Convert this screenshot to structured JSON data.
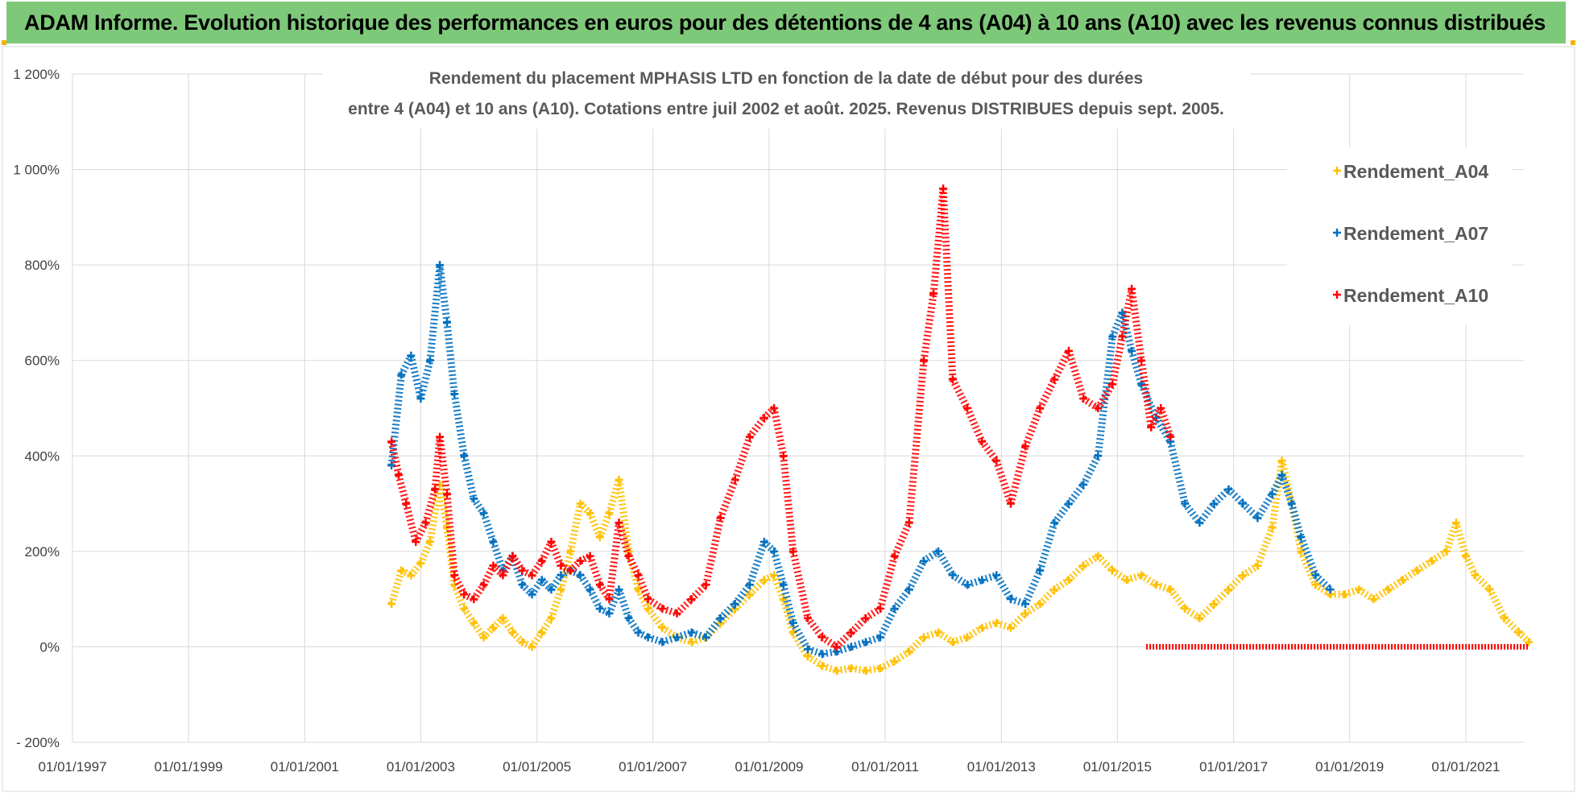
{
  "banner": {
    "title": "ADAM Informe. Evolution historique des performances en euros pour des détentions de 4 ans (A04) à 10 ans (A10) avec les revenus connus distribués",
    "color": "#7ec87a"
  },
  "chart_data": {
    "type": "scatter",
    "title_line1": "Rendement du placement MPHASIS LTD en fonction de la date de début pour des durées",
    "title_line2": "entre 4 (A04) et 10 ans (A10).  Cotations entre juil 2002 et août. 2025.  Revenus DISTRIBUES depuis sept. 2005.",
    "xlabel": "",
    "ylabel": "",
    "xlim": [
      "1997-01-01",
      "2022-01-01"
    ],
    "ylim": [
      -200,
      1200
    ],
    "x_ticks": [
      "01/01/1997",
      "01/01/1999",
      "01/01/2001",
      "01/01/2003",
      "01/01/2005",
      "01/01/2007",
      "01/01/2009",
      "01/01/2011",
      "01/01/2013",
      "01/01/2015",
      "01/01/2017",
      "01/01/2019",
      "01/01/2021"
    ],
    "y_ticks": [
      "- 200%",
      "0%",
      "200%",
      "400%",
      "600%",
      "800%",
      "1 000%",
      "1 200%"
    ],
    "y_tick_values": [
      -200,
      0,
      200,
      400,
      600,
      800,
      1000,
      1200
    ],
    "grid": true,
    "legend_position": "top-right",
    "marker": "+",
    "series": [
      {
        "name": "Rendement_A04",
        "color": "#ffc000",
        "points": [
          [
            "2002-07-01",
            90
          ],
          [
            "2002-09-01",
            160
          ],
          [
            "2002-11-01",
            150
          ],
          [
            "2003-01-01",
            175
          ],
          [
            "2003-03-01",
            220
          ],
          [
            "2003-05-01",
            340
          ],
          [
            "2003-06-15",
            250
          ],
          [
            "2003-08-01",
            130
          ],
          [
            "2003-10-01",
            80
          ],
          [
            "2003-12-01",
            50
          ],
          [
            "2004-02-01",
            20
          ],
          [
            "2004-04-01",
            40
          ],
          [
            "2004-06-01",
            60
          ],
          [
            "2004-08-01",
            30
          ],
          [
            "2004-10-01",
            10
          ],
          [
            "2004-12-01",
            0
          ],
          [
            "2005-02-01",
            30
          ],
          [
            "2005-04-01",
            60
          ],
          [
            "2005-06-01",
            120
          ],
          [
            "2005-08-01",
            200
          ],
          [
            "2005-10-01",
            300
          ],
          [
            "2005-12-01",
            280
          ],
          [
            "2006-02-01",
            230
          ],
          [
            "2006-04-01",
            280
          ],
          [
            "2006-06-01",
            350
          ],
          [
            "2006-08-01",
            200
          ],
          [
            "2006-10-01",
            120
          ],
          [
            "2006-12-01",
            80
          ],
          [
            "2007-03-01",
            40
          ],
          [
            "2007-06-01",
            20
          ],
          [
            "2007-09-01",
            10
          ],
          [
            "2007-12-01",
            20
          ],
          [
            "2008-03-01",
            50
          ],
          [
            "2008-06-01",
            80
          ],
          [
            "2008-09-01",
            110
          ],
          [
            "2008-12-01",
            140
          ],
          [
            "2009-02-01",
            150
          ],
          [
            "2009-04-01",
            100
          ],
          [
            "2009-06-01",
            30
          ],
          [
            "2009-09-01",
            -20
          ],
          [
            "2009-12-01",
            -40
          ],
          [
            "2010-03-01",
            -50
          ],
          [
            "2010-06-01",
            -45
          ],
          [
            "2010-09-01",
            -50
          ],
          [
            "2010-12-01",
            -45
          ],
          [
            "2011-03-01",
            -30
          ],
          [
            "2011-06-01",
            -10
          ],
          [
            "2011-09-01",
            20
          ],
          [
            "2011-12-01",
            30
          ],
          [
            "2012-03-01",
            10
          ],
          [
            "2012-06-01",
            20
          ],
          [
            "2012-09-01",
            40
          ],
          [
            "2012-12-01",
            50
          ],
          [
            "2013-03-01",
            40
          ],
          [
            "2013-06-01",
            70
          ],
          [
            "2013-09-01",
            90
          ],
          [
            "2013-12-01",
            120
          ],
          [
            "2014-03-01",
            140
          ],
          [
            "2014-06-01",
            170
          ],
          [
            "2014-09-01",
            190
          ],
          [
            "2014-12-01",
            160
          ],
          [
            "2015-03-01",
            140
          ],
          [
            "2015-06-01",
            150
          ],
          [
            "2015-09-01",
            130
          ],
          [
            "2015-12-01",
            120
          ],
          [
            "2016-03-01",
            80
          ],
          [
            "2016-06-01",
            60
          ],
          [
            "2016-09-01",
            90
          ],
          [
            "2016-12-01",
            120
          ],
          [
            "2017-03-01",
            150
          ],
          [
            "2017-06-01",
            170
          ],
          [
            "2017-09-01",
            250
          ],
          [
            "2017-11-01",
            390
          ],
          [
            "2018-01-01",
            300
          ],
          [
            "2018-03-01",
            200
          ],
          [
            "2018-06-01",
            130
          ],
          [
            "2018-09-01",
            110
          ],
          [
            "2018-12-01",
            110
          ],
          [
            "2019-03-01",
            120
          ],
          [
            "2019-06-01",
            100
          ],
          [
            "2019-09-01",
            120
          ],
          [
            "2019-12-01",
            140
          ],
          [
            "2020-03-01",
            160
          ],
          [
            "2020-06-01",
            180
          ],
          [
            "2020-09-01",
            200
          ],
          [
            "2020-11-01",
            260
          ],
          [
            "2021-01-01",
            190
          ],
          [
            "2021-03-01",
            150
          ],
          [
            "2021-06-01",
            120
          ],
          [
            "2021-09-01",
            60
          ],
          [
            "2021-12-01",
            30
          ],
          [
            "2022-02-01",
            10
          ]
        ]
      },
      {
        "name": "Rendement_A07",
        "color": "#0070c0",
        "points": [
          [
            "2002-07-01",
            380
          ],
          [
            "2002-09-01",
            570
          ],
          [
            "2002-11-01",
            610
          ],
          [
            "2003-01-01",
            520
          ],
          [
            "2003-03-01",
            600
          ],
          [
            "2003-05-01",
            800
          ],
          [
            "2003-06-15",
            680
          ],
          [
            "2003-08-01",
            530
          ],
          [
            "2003-10-01",
            400
          ],
          [
            "2003-12-01",
            310
          ],
          [
            "2004-02-01",
            280
          ],
          [
            "2004-04-01",
            220
          ],
          [
            "2004-06-01",
            160
          ],
          [
            "2004-08-01",
            190
          ],
          [
            "2004-10-01",
            130
          ],
          [
            "2004-12-01",
            110
          ],
          [
            "2005-02-01",
            140
          ],
          [
            "2005-04-01",
            120
          ],
          [
            "2005-06-01",
            150
          ],
          [
            "2005-08-01",
            160
          ],
          [
            "2005-10-01",
            150
          ],
          [
            "2005-12-01",
            120
          ],
          [
            "2006-02-01",
            80
          ],
          [
            "2006-04-01",
            70
          ],
          [
            "2006-06-01",
            120
          ],
          [
            "2006-08-01",
            60
          ],
          [
            "2006-10-01",
            30
          ],
          [
            "2006-12-01",
            20
          ],
          [
            "2007-03-01",
            10
          ],
          [
            "2007-06-01",
            20
          ],
          [
            "2007-09-01",
            30
          ],
          [
            "2007-12-01",
            20
          ],
          [
            "2008-03-01",
            60
          ],
          [
            "2008-06-01",
            90
          ],
          [
            "2008-09-01",
            130
          ],
          [
            "2008-12-01",
            220
          ],
          [
            "2009-02-01",
            200
          ],
          [
            "2009-04-01",
            130
          ],
          [
            "2009-06-01",
            50
          ],
          [
            "2009-09-01",
            -5
          ],
          [
            "2009-12-01",
            -15
          ],
          [
            "2010-03-01",
            -10
          ],
          [
            "2010-06-01",
            0
          ],
          [
            "2010-09-01",
            10
          ],
          [
            "2010-12-01",
            20
          ],
          [
            "2011-03-01",
            80
          ],
          [
            "2011-06-01",
            120
          ],
          [
            "2011-09-01",
            180
          ],
          [
            "2011-12-01",
            200
          ],
          [
            "2012-03-01",
            150
          ],
          [
            "2012-06-01",
            130
          ],
          [
            "2012-09-01",
            140
          ],
          [
            "2012-12-01",
            150
          ],
          [
            "2013-03-01",
            100
          ],
          [
            "2013-06-01",
            90
          ],
          [
            "2013-09-01",
            160
          ],
          [
            "2013-12-01",
            260
          ],
          [
            "2014-03-01",
            300
          ],
          [
            "2014-06-01",
            340
          ],
          [
            "2014-09-01",
            400
          ],
          [
            "2014-12-01",
            650
          ],
          [
            "2015-02-01",
            700
          ],
          [
            "2015-04-01",
            620
          ],
          [
            "2015-06-01",
            550
          ],
          [
            "2015-09-01",
            480
          ],
          [
            "2015-12-01",
            430
          ],
          [
            "2016-03-01",
            300
          ],
          [
            "2016-06-01",
            260
          ],
          [
            "2016-09-01",
            300
          ],
          [
            "2016-12-01",
            330
          ],
          [
            "2017-03-01",
            300
          ],
          [
            "2017-06-01",
            270
          ],
          [
            "2017-09-01",
            320
          ],
          [
            "2017-11-01",
            360
          ],
          [
            "2018-01-01",
            300
          ],
          [
            "2018-03-01",
            230
          ],
          [
            "2018-06-01",
            150
          ],
          [
            "2018-09-01",
            120
          ]
        ]
      },
      {
        "name": "Rendement_A10",
        "color": "#ff0000",
        "points": [
          [
            "2002-07-01",
            430
          ],
          [
            "2002-08-15",
            360
          ],
          [
            "2002-10-01",
            300
          ],
          [
            "2002-12-01",
            220
          ],
          [
            "2003-02-01",
            260
          ],
          [
            "2003-04-01",
            330
          ],
          [
            "2003-05-01",
            440
          ],
          [
            "2003-06-15",
            320
          ],
          [
            "2003-08-01",
            150
          ],
          [
            "2003-10-01",
            110
          ],
          [
            "2003-12-01",
            100
          ],
          [
            "2004-02-01",
            130
          ],
          [
            "2004-04-01",
            170
          ],
          [
            "2004-06-01",
            150
          ],
          [
            "2004-08-01",
            190
          ],
          [
            "2004-10-01",
            160
          ],
          [
            "2004-12-01",
            150
          ],
          [
            "2005-02-01",
            180
          ],
          [
            "2005-04-01",
            220
          ],
          [
            "2005-06-01",
            170
          ],
          [
            "2005-08-01",
            160
          ],
          [
            "2005-10-01",
            180
          ],
          [
            "2005-12-01",
            190
          ],
          [
            "2006-02-01",
            130
          ],
          [
            "2006-04-01",
            100
          ],
          [
            "2006-06-01",
            260
          ],
          [
            "2006-08-01",
            190
          ],
          [
            "2006-10-01",
            150
          ],
          [
            "2006-12-01",
            100
          ],
          [
            "2007-03-01",
            80
          ],
          [
            "2007-06-01",
            70
          ],
          [
            "2007-09-01",
            100
          ],
          [
            "2007-12-01",
            130
          ],
          [
            "2008-03-01",
            270
          ],
          [
            "2008-06-01",
            350
          ],
          [
            "2008-09-01",
            440
          ],
          [
            "2008-12-01",
            480
          ],
          [
            "2009-02-01",
            500
          ],
          [
            "2009-04-01",
            400
          ],
          [
            "2009-06-01",
            200
          ],
          [
            "2009-09-01",
            60
          ],
          [
            "2009-12-01",
            20
          ],
          [
            "2010-03-01",
            0
          ],
          [
            "2010-06-01",
            30
          ],
          [
            "2010-09-01",
            60
          ],
          [
            "2010-12-01",
            80
          ],
          [
            "2011-03-01",
            190
          ],
          [
            "2011-06-01",
            260
          ],
          [
            "2011-09-01",
            600
          ],
          [
            "2011-11-01",
            740
          ],
          [
            "2012-01-01",
            960
          ],
          [
            "2012-03-01",
            560
          ],
          [
            "2012-06-01",
            500
          ],
          [
            "2012-09-01",
            430
          ],
          [
            "2012-12-01",
            390
          ],
          [
            "2013-03-01",
            300
          ],
          [
            "2013-06-01",
            420
          ],
          [
            "2013-09-01",
            500
          ],
          [
            "2013-12-01",
            560
          ],
          [
            "2014-03-01",
            620
          ],
          [
            "2014-06-01",
            520
          ],
          [
            "2014-09-01",
            500
          ],
          [
            "2014-12-01",
            550
          ],
          [
            "2015-02-01",
            650
          ],
          [
            "2015-04-01",
            750
          ],
          [
            "2015-06-01",
            600
          ],
          [
            "2015-08-01",
            460
          ],
          [
            "2015-10-01",
            500
          ],
          [
            "2015-12-01",
            440
          ]
        ]
      }
    ]
  }
}
